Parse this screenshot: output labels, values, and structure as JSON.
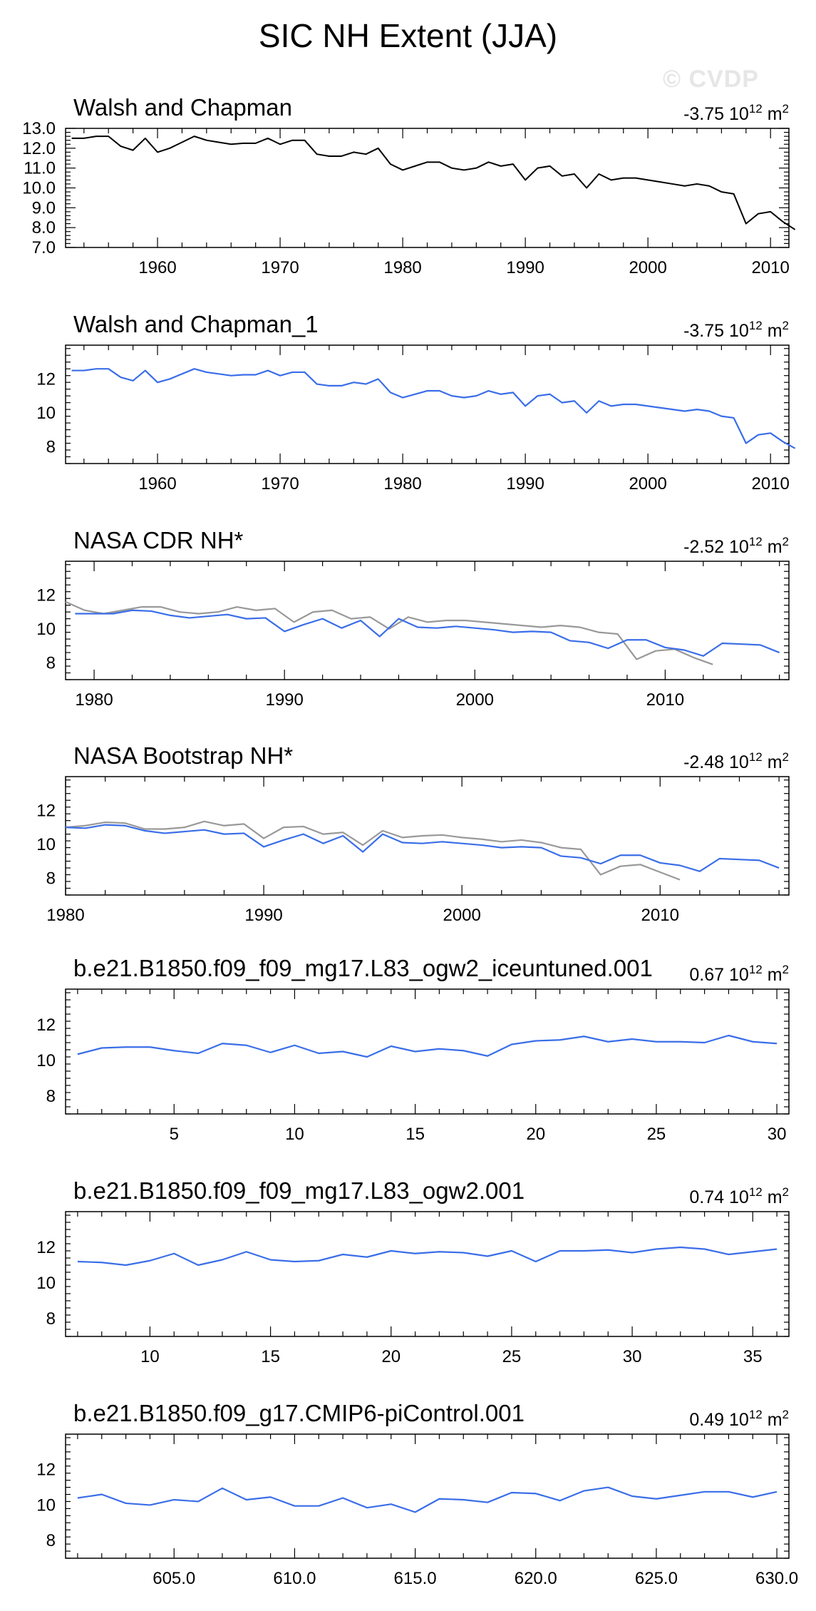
{
  "title": "SIC NH Extent (JJA)",
  "watermark": "© CVDP",
  "colors": {
    "obs": "#000000",
    "model": "#3a6ee8",
    "overlay": "#999999",
    "frame": "#000000"
  },
  "chart_data": [
    {
      "type": "line",
      "title": "Walsh and Chapman",
      "trend_label": "-3.75",
      "trend_units": "10^12 m^2",
      "xlim": [
        1952.5,
        2011.5
      ],
      "ylim": [
        7.0,
        13.0
      ],
      "xticks": [
        1960,
        1970,
        1980,
        1990,
        2000,
        2010
      ],
      "xtick_labels": [
        "1960",
        "1970",
        "1980",
        "1990",
        "2000",
        "2010"
      ],
      "yticks": [
        7,
        8,
        9,
        10,
        11,
        12,
        13
      ],
      "ytick_labels": [
        "7.0",
        "8.0",
        "9.0",
        "10.0",
        "11.0",
        "12.0",
        "13.0"
      ],
      "series": [
        {
          "name": "Walsh and Chapman",
          "color_key": "obs",
          "x_start": 1953,
          "values": [
            12.5,
            12.5,
            12.6,
            12.6,
            12.1,
            11.9,
            12.5,
            11.8,
            12.0,
            12.3,
            12.6,
            12.4,
            12.3,
            12.2,
            12.25,
            12.25,
            12.5,
            12.2,
            12.4,
            12.4,
            11.7,
            11.6,
            11.6,
            11.8,
            11.7,
            12.0,
            11.2,
            10.9,
            11.1,
            11.3,
            11.3,
            11.0,
            10.9,
            11.0,
            11.3,
            11.1,
            11.2,
            10.4,
            11.0,
            11.1,
            10.6,
            10.7,
            10.0,
            10.7,
            10.4,
            10.5,
            10.5,
            10.4,
            10.3,
            10.2,
            10.1,
            10.2,
            10.1,
            9.8,
            9.7,
            8.2,
            8.7,
            8.8,
            8.3,
            7.9
          ]
        }
      ]
    },
    {
      "type": "line",
      "title": "Walsh and Chapman_1",
      "trend_label": "-3.75",
      "trend_units": "10^12 m^2",
      "xlim": [
        1952.5,
        2011.5
      ],
      "ylim": [
        7.0,
        14.0
      ],
      "xticks": [
        1960,
        1970,
        1980,
        1990,
        2000,
        2010
      ],
      "xtick_labels": [
        "1960",
        "1970",
        "1980",
        "1990",
        "2000",
        "2010"
      ],
      "yticks": [
        8,
        10,
        12
      ],
      "ytick_labels": [
        "8",
        "10",
        "12"
      ],
      "series": [
        {
          "name": "Walsh and Chapman_1",
          "color_key": "model",
          "x_start": 1953,
          "values": [
            12.5,
            12.5,
            12.6,
            12.6,
            12.1,
            11.9,
            12.5,
            11.8,
            12.0,
            12.3,
            12.6,
            12.4,
            12.3,
            12.2,
            12.25,
            12.25,
            12.5,
            12.2,
            12.4,
            12.4,
            11.7,
            11.6,
            11.6,
            11.8,
            11.7,
            12.0,
            11.2,
            10.9,
            11.1,
            11.3,
            11.3,
            11.0,
            10.9,
            11.0,
            11.3,
            11.1,
            11.2,
            10.4,
            11.0,
            11.1,
            10.6,
            10.7,
            10.0,
            10.7,
            10.4,
            10.5,
            10.5,
            10.4,
            10.3,
            10.2,
            10.1,
            10.2,
            10.1,
            9.8,
            9.7,
            8.2,
            8.7,
            8.8,
            8.3,
            7.9
          ]
        }
      ]
    },
    {
      "type": "line",
      "title": "NASA CDR NH*",
      "trend_label": "-2.52",
      "trend_units": "10^12 m^2",
      "xlim": [
        1978.5,
        2016.5
      ],
      "ylim": [
        7.0,
        14.0
      ],
      "xticks": [
        1980,
        1990,
        2000,
        2010
      ],
      "xtick_labels": [
        "1980",
        "1990",
        "2000",
        "2010"
      ],
      "yticks": [
        8,
        10,
        12
      ],
      "ytick_labels": [
        "8",
        "10",
        "12"
      ],
      "series": [
        {
          "name": "Walsh and Chapman",
          "color_key": "overlay",
          "x_start": 1978.5,
          "values": [
            11.6,
            11.1,
            10.9,
            11.1,
            11.3,
            11.3,
            11.0,
            10.9,
            11.0,
            11.3,
            11.1,
            11.2,
            10.4,
            11.0,
            11.1,
            10.6,
            10.7,
            10.0,
            10.7,
            10.4,
            10.5,
            10.5,
            10.4,
            10.3,
            10.2,
            10.1,
            10.2,
            10.1,
            9.8,
            9.7,
            8.2,
            8.7,
            8.8,
            8.3,
            7.9
          ]
        },
        {
          "name": "NASA CDR NH",
          "color_key": "model",
          "x_start": 1979,
          "values": [
            10.9,
            10.9,
            10.9,
            11.1,
            11.05,
            10.8,
            10.65,
            10.75,
            10.85,
            10.6,
            10.65,
            9.85,
            10.25,
            10.6,
            10.05,
            10.5,
            9.55,
            10.6,
            10.1,
            10.05,
            10.15,
            10.05,
            9.95,
            9.8,
            9.85,
            9.8,
            9.3,
            9.2,
            8.85,
            9.35,
            9.35,
            8.9,
            8.75,
            8.4,
            9.15,
            9.1,
            9.05,
            8.6
          ]
        }
      ]
    },
    {
      "type": "line",
      "title": "NASA Bootstrap NH*",
      "trend_label": "-2.48",
      "trend_units": "10^12 m^2",
      "xlim": [
        1980,
        2016.5
      ],
      "ylim": [
        7.0,
        14.0
      ],
      "xticks": [
        1980,
        1990,
        2000,
        2010
      ],
      "xtick_labels": [
        "1980",
        "1990",
        "2000",
        "2010"
      ],
      "yticks": [
        8,
        10,
        12
      ],
      "ytick_labels": [
        "8",
        "10",
        "12"
      ],
      "series": [
        {
          "name": "Walsh and Chapman",
          "color_key": "overlay",
          "x_start": 1980,
          "values": [
            11.0,
            11.1,
            11.3,
            11.25,
            10.9,
            10.9,
            11.0,
            11.35,
            11.1,
            11.2,
            10.35,
            11.0,
            11.05,
            10.6,
            10.7,
            9.95,
            10.8,
            10.4,
            10.5,
            10.55,
            10.4,
            10.3,
            10.15,
            10.25,
            10.1,
            9.8,
            9.7,
            8.2,
            8.7,
            8.8,
            8.35,
            7.9
          ]
        },
        {
          "name": "NASA Bootstrap NH",
          "color_key": "model",
          "x_start": 1980,
          "values": [
            11.0,
            10.95,
            11.15,
            11.1,
            10.8,
            10.65,
            10.75,
            10.85,
            10.6,
            10.65,
            9.85,
            10.25,
            10.6,
            10.05,
            10.5,
            9.55,
            10.6,
            10.1,
            10.05,
            10.15,
            10.05,
            9.95,
            9.8,
            9.85,
            9.8,
            9.3,
            9.2,
            8.85,
            9.35,
            9.35,
            8.9,
            8.75,
            8.4,
            9.15,
            9.1,
            9.05,
            8.6
          ]
        }
      ]
    },
    {
      "type": "line",
      "title": "b.e21.B1850.f09_f09_mg17.L83_ogw2_iceuntuned.001",
      "trend_label": "0.67",
      "trend_units": "10^12 m^2",
      "xlim": [
        0.5,
        30.5
      ],
      "ylim": [
        7.0,
        14.0
      ],
      "xticks": [
        5,
        10,
        15,
        20,
        25,
        30
      ],
      "xtick_labels": [
        "5",
        "10",
        "15",
        "20",
        "25",
        "30"
      ],
      "yticks": [
        8,
        10,
        12
      ],
      "ytick_labels": [
        "8",
        "10",
        "12"
      ],
      "series": [
        {
          "name": "ogw2_iceuntuned",
          "color_key": "model",
          "x_start": 1,
          "values": [
            10.35,
            10.7,
            10.75,
            10.75,
            10.55,
            10.4,
            10.95,
            10.85,
            10.45,
            10.85,
            10.4,
            10.5,
            10.2,
            10.8,
            10.5,
            10.65,
            10.55,
            10.25,
            10.9,
            11.1,
            11.15,
            11.35,
            11.05,
            11.2,
            11.05,
            11.05,
            11.0,
            11.4,
            11.05,
            10.95
          ]
        }
      ]
    },
    {
      "type": "line",
      "title": "b.e21.B1850.f09_f09_mg17.L83_ogw2.001",
      "trend_label": "0.74",
      "trend_units": "10^12 m^2",
      "xlim": [
        6.5,
        36.5
      ],
      "ylim": [
        7.0,
        14.0
      ],
      "xticks": [
        10,
        15,
        20,
        25,
        30,
        35
      ],
      "xtick_labels": [
        "10",
        "15",
        "20",
        "25",
        "30",
        "35"
      ],
      "yticks": [
        8,
        10,
        12
      ],
      "ytick_labels": [
        "8",
        "10",
        "12"
      ],
      "series": [
        {
          "name": "ogw2",
          "color_key": "model",
          "x_start": 7,
          "values": [
            11.2,
            11.15,
            11.0,
            11.25,
            11.65,
            11.0,
            11.3,
            11.75,
            11.3,
            11.2,
            11.25,
            11.6,
            11.45,
            11.8,
            11.65,
            11.75,
            11.7,
            11.5,
            11.8,
            11.2,
            11.8,
            11.8,
            11.85,
            11.7,
            11.9,
            12.0,
            11.9,
            11.6,
            11.75,
            11.9
          ]
        }
      ]
    },
    {
      "type": "line",
      "title": "b.e21.B1850.f09_g17.CMIP6-piControl.001",
      "trend_label": "0.49",
      "trend_units": "10^12 m^2",
      "xlim": [
        600.5,
        630.5
      ],
      "ylim": [
        7.0,
        14.0
      ],
      "xticks": [
        605,
        610,
        615,
        620,
        625,
        630
      ],
      "xtick_labels": [
        "605.0",
        "610.0",
        "615.0",
        "620.0",
        "625.0",
        "630.0"
      ],
      "yticks": [
        8,
        10,
        12
      ],
      "ytick_labels": [
        "8",
        "10",
        "12"
      ],
      "series": [
        {
          "name": "piControl",
          "color_key": "model",
          "x_start": 601,
          "values": [
            10.4,
            10.6,
            10.1,
            10.0,
            10.3,
            10.2,
            10.95,
            10.3,
            10.45,
            9.95,
            9.95,
            10.4,
            9.85,
            10.05,
            9.6,
            10.35,
            10.3,
            10.15,
            10.7,
            10.65,
            10.25,
            10.8,
            11.0,
            10.5,
            10.35,
            10.55,
            10.75,
            10.75,
            10.45,
            10.75
          ]
        }
      ]
    }
  ]
}
